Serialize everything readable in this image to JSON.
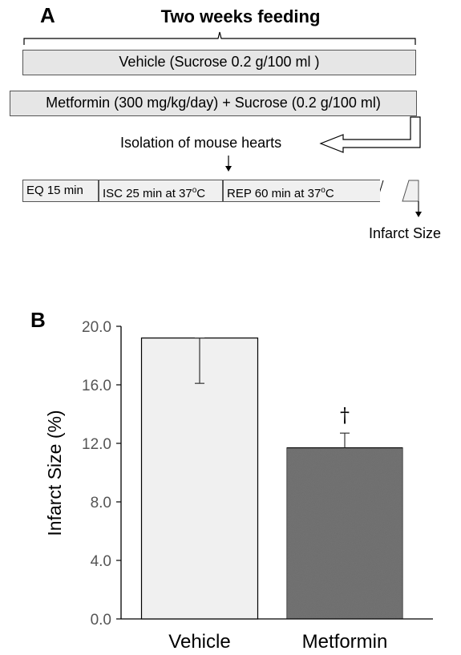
{
  "panel_a": {
    "letter": "A",
    "title": "Two weeks feeding",
    "vehicle_box": "Vehicle (Sucrose 0.2 g/100 ml )",
    "metformin_box": "Metformin (300 mg/kg/day) + Sucrose (0.2 g/100 ml)",
    "isolation_label": "Isolation of mouse hearts",
    "timeline": {
      "eq": "EQ 15 min",
      "isc": "ISC 25 min at 37",
      "rep": "REP 60 min at 37",
      "degree_sup": "o",
      "unit_c": "C"
    },
    "infarct_label": "Infarct  Size"
  },
  "panel_b": {
    "letter": "B"
  },
  "chart_data": {
    "type": "bar",
    "title": "",
    "xlabel": "",
    "ylabel": "Infarct Size (%)",
    "categories": [
      "Vehicle",
      "Metformin"
    ],
    "values": [
      19.2,
      11.7
    ],
    "error_lower": [
      16.1,
      11.7
    ],
    "error_upper": [
      19.2,
      12.7
    ],
    "annotations": [
      "",
      "†"
    ],
    "ylim": [
      0,
      20
    ],
    "yticks": [
      "0.0",
      "4.0",
      "8.0",
      "12.0",
      "16.0",
      "20.0"
    ],
    "bar_colors": [
      "#f0f0f0",
      "#767676"
    ],
    "grid": false
  }
}
